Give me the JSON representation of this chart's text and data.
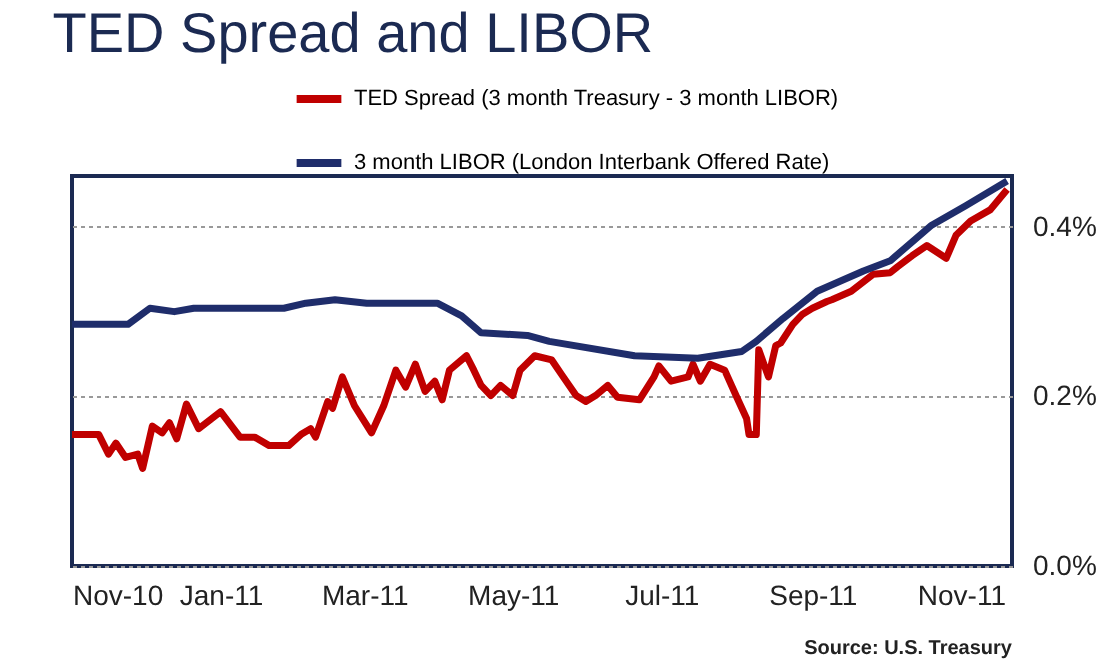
{
  "chart_data": {
    "type": "line",
    "title": "TED Spread and LIBOR",
    "annotations": [
      "Source:  U.S. Treasury"
    ],
    "xlim": [
      "2010-11-01",
      "2011-11-22"
    ],
    "xticks": [
      {
        "value": "2010-11-01",
        "label": "Nov-10"
      },
      {
        "value": "2011-01-01",
        "label": "Jan-11"
      },
      {
        "value": "2011-03-01",
        "label": "Mar-11"
      },
      {
        "value": "2011-05-01",
        "label": "May-11"
      },
      {
        "value": "2011-07-01",
        "label": "Jul-11"
      },
      {
        "value": "2011-09-01",
        "label": "Sep-11"
      },
      {
        "value": "2011-11-01",
        "label": "Nov-11"
      }
    ],
    "ylim": [
      0,
      0.46
    ],
    "yticks": [
      {
        "value": 0,
        "label": "0.0%"
      },
      {
        "value": 0.2,
        "label": "0.2%"
      },
      {
        "value": 0.4,
        "label": "0.4%"
      }
    ],
    "grid": "y",
    "legend": "top",
    "line_style": "solid",
    "marker": "none",
    "series": [
      {
        "name": "TED Spread (3 month Treasury - 3 month LIBOR)",
        "color": "#c00000",
        "x": [
          "2010-11-01",
          "2010-11-12",
          "2010-11-16",
          "2010-11-19",
          "2010-11-23",
          "2010-11-28",
          "2010-11-30",
          "2010-12-04",
          "2010-12-08",
          "2010-12-11",
          "2010-12-14",
          "2010-12-18",
          "2010-12-23",
          "2011-01-01",
          "2011-01-09",
          "2011-01-15",
          "2011-01-21",
          "2011-01-29",
          "2011-02-03",
          "2011-02-07",
          "2011-02-09",
          "2011-02-14",
          "2011-02-16",
          "2011-02-20",
          "2011-02-25",
          "2011-03-04",
          "2011-03-09",
          "2011-03-14",
          "2011-03-18",
          "2011-03-22",
          "2011-03-26",
          "2011-03-30",
          "2011-04-02",
          "2011-04-05",
          "2011-04-12",
          "2011-04-15",
          "2011-04-18",
          "2011-04-22",
          "2011-04-26",
          "2011-05-01",
          "2011-05-04",
          "2011-05-10",
          "2011-05-17",
          "2011-05-21",
          "2011-05-27",
          "2011-05-31",
          "2011-06-04",
          "2011-06-09",
          "2011-06-13",
          "2011-06-22",
          "2011-06-28",
          "2011-06-30",
          "2011-07-05",
          "2011-07-12",
          "2011-07-14",
          "2011-07-17",
          "2011-07-21",
          "2011-07-27",
          "2011-08-01",
          "2011-08-05",
          "2011-08-06",
          "2011-08-09",
          "2011-08-10",
          "2011-08-14",
          "2011-08-17",
          "2011-08-19",
          "2011-08-24",
          "2011-08-28",
          "2011-09-01",
          "2011-09-07",
          "2011-09-09",
          "2011-09-17",
          "2011-09-26",
          "2011-10-03",
          "2011-10-06",
          "2011-10-12",
          "2011-10-18",
          "2011-10-26",
          "2011-10-30",
          "2011-11-05",
          "2011-11-13",
          "2011-11-20"
        ],
        "values": [
          0.155,
          0.155,
          0.132,
          0.145,
          0.128,
          0.132,
          0.115,
          0.165,
          0.157,
          0.169,
          0.15,
          0.191,
          0.162,
          0.182,
          0.152,
          0.152,
          0.142,
          0.142,
          0.155,
          0.162,
          0.152,
          0.194,
          0.186,
          0.223,
          0.189,
          0.157,
          0.189,
          0.231,
          0.211,
          0.238,
          0.206,
          0.218,
          0.196,
          0.231,
          0.248,
          0.231,
          0.213,
          0.201,
          0.213,
          0.201,
          0.231,
          0.248,
          0.243,
          0.226,
          0.201,
          0.194,
          0.201,
          0.213,
          0.199,
          0.196,
          0.223,
          0.236,
          0.218,
          0.223,
          0.238,
          0.218,
          0.238,
          0.231,
          0.199,
          0.174,
          0.155,
          0.155,
          0.255,
          0.223,
          0.26,
          0.263,
          0.285,
          0.297,
          0.304,
          0.312,
          0.314,
          0.324,
          0.344,
          0.346,
          0.353,
          0.366,
          0.378,
          0.363,
          0.39,
          0.407,
          0.42,
          0.444
        ]
      },
      {
        "name": "3 month LIBOR (London Interbank Offered Rate)",
        "color": "#1f2d6b",
        "x": [
          "2010-11-01",
          "2010-11-24",
          "2010-12-03",
          "2010-12-13",
          "2010-12-21",
          "2011-01-27",
          "2011-02-05",
          "2011-02-17",
          "2011-03-02",
          "2011-03-31",
          "2011-04-10",
          "2011-04-18",
          "2011-05-07",
          "2011-05-16",
          "2011-06-20",
          "2011-07-16",
          "2011-08-03",
          "2011-08-09",
          "2011-08-20",
          "2011-09-03",
          "2011-09-22",
          "2011-10-03",
          "2011-10-20",
          "2011-11-03",
          "2011-11-20"
        ],
        "values": [
          0.285,
          0.285,
          0.304,
          0.3,
          0.304,
          0.304,
          0.31,
          0.314,
          0.31,
          0.31,
          0.295,
          0.275,
          0.272,
          0.265,
          0.248,
          0.245,
          0.253,
          0.265,
          0.292,
          0.324,
          0.348,
          0.36,
          0.402,
          0.425,
          0.454
        ]
      }
    ]
  }
}
